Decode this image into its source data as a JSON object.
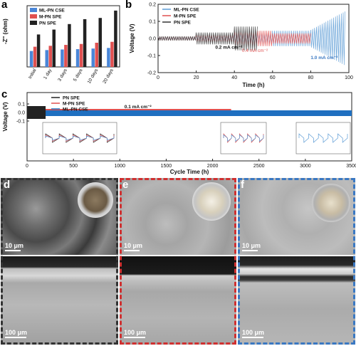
{
  "panels": {
    "a": "a",
    "b": "b",
    "c": "c",
    "d": "d",
    "e": "e",
    "f": "f"
  },
  "chart_data": [
    {
      "type": "bar",
      "ylabel": "-Z\" (ohm)",
      "categories": [
        "Initial",
        "1 day",
        "3 days",
        "5 days",
        "10 days",
        "20 days"
      ],
      "series": [
        {
          "name": "ML-PN CSE",
          "color": "#4a86d8",
          "values": [
            260,
            275,
            285,
            290,
            300,
            310
          ]
        },
        {
          "name": "M-PN SPE",
          "color": "#e05050",
          "values": [
            330,
            345,
            360,
            375,
            395,
            410
          ]
        },
        {
          "name": "PN SPE",
          "color": "#222222",
          "values": [
            530,
            610,
            700,
            780,
            800,
            920
          ]
        }
      ]
    },
    {
      "type": "line",
      "xlabel": "Time (h)",
      "ylabel": "Voltage (V)",
      "xlim": [
        0,
        100
      ],
      "ylim": [
        -0.2,
        0.2
      ],
      "xticks": [
        "0",
        "20",
        "40",
        "60",
        "80",
        "100"
      ],
      "yticks": [
        "-0.2",
        "-0.1",
        "0.0",
        "0.1",
        "0.2"
      ],
      "series": [
        {
          "name": "ML-PN CSE",
          "color": "#5b9bd5"
        },
        {
          "name": "M-PN SPE",
          "color": "#e05050"
        },
        {
          "name": "PN SPE",
          "color": "#333333"
        }
      ],
      "annotations": [
        "0.2 mA cm⁻²",
        "0.4 mA cm⁻²",
        "1.0 mA cm⁻²"
      ]
    },
    {
      "type": "line",
      "xlabel": "Cycle Time (h)",
      "ylabel": "Voltage (V)",
      "xlim": [
        0,
        3500
      ],
      "xticks": [
        "0",
        "500",
        "1000",
        "1500",
        "2000",
        "2500",
        "3000",
        "3500"
      ],
      "yticks": [
        "-0.1",
        "0.0",
        "0.1"
      ],
      "series": [
        {
          "name": "PN SPE",
          "color": "#222222",
          "end": 200
        },
        {
          "name": "M-PN SPE",
          "color": "#e05050",
          "end": 2200
        },
        {
          "name": "ML-PN CSE",
          "color": "#1f6fc0",
          "end": 3500
        }
      ],
      "annotations": [
        "0.1 mA cm⁻²"
      ]
    }
  ],
  "sem": {
    "scale_top": "10 μm",
    "scale_bottom": "100 μm",
    "frame_colors": {
      "d": "#333333",
      "e": "#d03030",
      "f": "#3a78c2"
    }
  }
}
